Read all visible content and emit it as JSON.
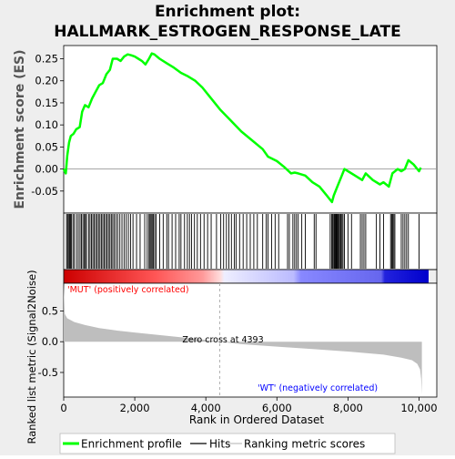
{
  "title_line1": "Enrichment plot:",
  "title_line2": "HALLMARK_ESTROGEN_RESPONSE_LATE",
  "es_axis_label": "Enrichment score (ES)",
  "metric_axis_label": "Ranked list metric (Signal2Noise)",
  "x_axis_label": "Rank in Ordered Dataset",
  "pos_label": "'MUT' (positively correlated)",
  "neg_label": "'WT' (negatively correlated)",
  "zero_cross_label": "Zero cross at 4393",
  "legend": {
    "profile": "Enrichment profile",
    "hits": "Hits",
    "metric": "Ranking metric scores"
  },
  "colors": {
    "profile": "#00ff00",
    "hits": "#000000",
    "metric": "#bebebe",
    "pos_label": "#ff0000",
    "neg_label": "#0000ff"
  },
  "chart_data": {
    "type": "line",
    "x_ticks": [
      "0",
      "2,000",
      "4,000",
      "6,000",
      "8,000",
      "10,000"
    ],
    "x_tick_values": [
      0,
      2000,
      4000,
      6000,
      8000,
      10000
    ],
    "xlim": [
      0,
      10500
    ],
    "es": {
      "ylim": [
        -0.1,
        0.28
      ],
      "y_ticks": [
        "0.25",
        "0.20",
        "0.15",
        "0.10",
        "0.05",
        "0.00",
        "-0.05"
      ],
      "y_tick_values": [
        0.25,
        0.2,
        0.15,
        0.1,
        0.05,
        0.0,
        -0.05
      ],
      "points": [
        [
          0,
          0.0
        ],
        [
          60,
          -0.01
        ],
        [
          100,
          0.03
        ],
        [
          150,
          0.06
        ],
        [
          200,
          0.075
        ],
        [
          280,
          0.08
        ],
        [
          350,
          0.09
        ],
        [
          450,
          0.095
        ],
        [
          520,
          0.13
        ],
        [
          600,
          0.145
        ],
        [
          700,
          0.14
        ],
        [
          800,
          0.16
        ],
        [
          900,
          0.175
        ],
        [
          1000,
          0.19
        ],
        [
          1100,
          0.195
        ],
        [
          1200,
          0.215
        ],
        [
          1300,
          0.225
        ],
        [
          1380,
          0.25
        ],
        [
          1500,
          0.25
        ],
        [
          1600,
          0.245
        ],
        [
          1700,
          0.255
        ],
        [
          1800,
          0.26
        ],
        [
          1900,
          0.258
        ],
        [
          2000,
          0.255
        ],
        [
          2100,
          0.25
        ],
        [
          2200,
          0.245
        ],
        [
          2300,
          0.237
        ],
        [
          2400,
          0.25
        ],
        [
          2480,
          0.262
        ],
        [
          2550,
          0.26
        ],
        [
          2700,
          0.25
        ],
        [
          2900,
          0.24
        ],
        [
          3100,
          0.23
        ],
        [
          3300,
          0.218
        ],
        [
          3500,
          0.21
        ],
        [
          3700,
          0.2
        ],
        [
          3900,
          0.185
        ],
        [
          4100,
          0.165
        ],
        [
          4400,
          0.135
        ],
        [
          4700,
          0.11
        ],
        [
          5000,
          0.085
        ],
        [
          5300,
          0.065
        ],
        [
          5600,
          0.045
        ],
        [
          5750,
          0.028
        ],
        [
          6000,
          0.018
        ],
        [
          6200,
          0.005
        ],
        [
          6400,
          -0.01
        ],
        [
          6500,
          -0.008
        ],
        [
          6600,
          -0.01
        ],
        [
          6800,
          -0.015
        ],
        [
          7000,
          -0.03
        ],
        [
          7200,
          -0.04
        ],
        [
          7400,
          -0.06
        ],
        [
          7550,
          -0.075
        ],
        [
          7600,
          -0.06
        ],
        [
          7700,
          -0.04
        ],
        [
          7800,
          -0.02
        ],
        [
          7900,
          0.0
        ],
        [
          8000,
          -0.005
        ],
        [
          8200,
          -0.015
        ],
        [
          8400,
          -0.025
        ],
        [
          8500,
          -0.01
        ],
        [
          8700,
          -0.025
        ],
        [
          8900,
          -0.035
        ],
        [
          9000,
          -0.03
        ],
        [
          9150,
          -0.04
        ],
        [
          9250,
          -0.01
        ],
        [
          9400,
          0.0
        ],
        [
          9500,
          -0.005
        ],
        [
          9600,
          0.0
        ],
        [
          9700,
          0.02
        ],
        [
          9850,
          0.01
        ],
        [
          10000,
          -0.005
        ],
        [
          10050,
          0.003
        ]
      ]
    },
    "metric": {
      "ylim": [
        -0.9,
        0.95
      ],
      "y_ticks": [
        "0.5",
        "0.0",
        "-0.5"
      ],
      "y_tick_values": [
        0.5,
        0.0,
        -0.5
      ],
      "zero_cross": 4393,
      "points": [
        [
          0,
          0.92
        ],
        [
          30,
          0.45
        ],
        [
          100,
          0.38
        ],
        [
          300,
          0.32
        ],
        [
          600,
          0.27
        ],
        [
          1000,
          0.22
        ],
        [
          1500,
          0.18
        ],
        [
          2000,
          0.15
        ],
        [
          2500,
          0.12
        ],
        [
          3000,
          0.09
        ],
        [
          3500,
          0.06
        ],
        [
          4000,
          0.03
        ],
        [
          4393,
          0.0
        ],
        [
          5000,
          -0.04
        ],
        [
          6000,
          -0.08
        ],
        [
          7000,
          -0.12
        ],
        [
          8000,
          -0.16
        ],
        [
          9000,
          -0.21
        ],
        [
          9500,
          -0.26
        ],
        [
          9800,
          -0.3
        ],
        [
          9950,
          -0.36
        ],
        [
          10030,
          -0.45
        ],
        [
          10060,
          -0.6
        ],
        [
          10080,
          -0.85
        ]
      ]
    },
    "hits": [
      80,
      110,
      135,
      165,
      190,
      215,
      260,
      300,
      360,
      410,
      460,
      500,
      540,
      580,
      610,
      640,
      700,
      740,
      780,
      820,
      860,
      900,
      940,
      980,
      1020,
      1060,
      1100,
      1140,
      1180,
      1220,
      1260,
      1300,
      1340,
      1380,
      1420,
      1470,
      1520,
      1580,
      1640,
      1700,
      1760,
      1820,
      1880,
      1950,
      2050,
      2150,
      2280,
      2350,
      2400,
      2430,
      2460,
      2490,
      2520,
      2560,
      2600,
      2700,
      2800,
      2900,
      2950,
      3050,
      3150,
      3250,
      3300,
      3400,
      3480,
      3540,
      3600,
      3680,
      3760,
      3850,
      3950,
      4050,
      4150,
      4300,
      4420,
      4500,
      4580,
      4650,
      4720,
      4800,
      4850,
      4950,
      5050,
      5150,
      5250,
      5350,
      5450,
      5600,
      5700,
      5750,
      5850,
      5950,
      6050,
      6300,
      6350,
      6450,
      6500,
      6550,
      6600,
      6700,
      6800,
      7050,
      7100,
      7500,
      7540,
      7570,
      7600,
      7620,
      7640,
      7660,
      7680,
      7700,
      7720,
      7750,
      7780,
      7800,
      7830,
      7860,
      7900,
      8000,
      8100,
      8350,
      8400,
      8450,
      8500,
      8800,
      8900,
      9000,
      9200,
      9230,
      9260,
      9290,
      9320,
      9500,
      9550,
      9600,
      9650,
      9700,
      10000
    ]
  }
}
